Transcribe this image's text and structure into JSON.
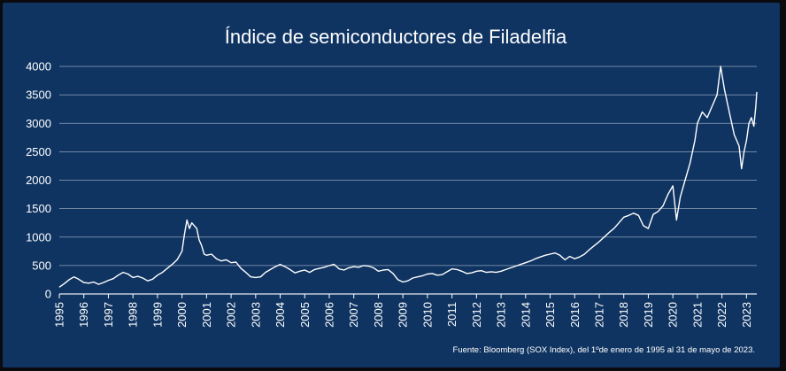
{
  "chart_data": {
    "type": "line",
    "title": "Índice de semiconductores de Filadelfia",
    "xlabel": "",
    "ylabel": "",
    "source_note": "Fuente: Bloomberg (SOX Index), del 1ºde enero de 1995 al 31 de mayo de 2023.",
    "x_tick_labels": [
      "1995",
      "1996",
      "1997",
      "1998",
      "1999",
      "2000",
      "2001",
      "2002",
      "2003",
      "2004",
      "2005",
      "2006",
      "2007",
      "2008",
      "2009",
      "2010",
      "2011",
      "2012",
      "2013",
      "2014",
      "2015",
      "2016",
      "2017",
      "2018",
      "2019",
      "2020",
      "2021",
      "2022",
      "2023"
    ],
    "y_tick_labels": [
      "0",
      "500",
      "1000",
      "1500",
      "2000",
      "2500",
      "3000",
      "3500",
      "4000"
    ],
    "xlim": [
      1995.0,
      2023.42
    ],
    "ylim": [
      0,
      4000
    ],
    "grid": "horizontal",
    "series": [
      {
        "color": "#ffffff",
        "points": [
          [
            1995.0,
            120
          ],
          [
            1995.2,
            180
          ],
          [
            1995.4,
            250
          ],
          [
            1995.6,
            300
          ],
          [
            1995.75,
            270
          ],
          [
            1996.0,
            200
          ],
          [
            1996.2,
            190
          ],
          [
            1996.4,
            210
          ],
          [
            1996.6,
            170
          ],
          [
            1996.8,
            200
          ],
          [
            1997.0,
            240
          ],
          [
            1997.2,
            270
          ],
          [
            1997.4,
            330
          ],
          [
            1997.6,
            380
          ],
          [
            1997.8,
            350
          ],
          [
            1998.0,
            290
          ],
          [
            1998.2,
            310
          ],
          [
            1998.4,
            280
          ],
          [
            1998.6,
            230
          ],
          [
            1998.8,
            260
          ],
          [
            1999.0,
            330
          ],
          [
            1999.2,
            380
          ],
          [
            1999.4,
            450
          ],
          [
            1999.6,
            520
          ],
          [
            1999.8,
            600
          ],
          [
            2000.0,
            750
          ],
          [
            2000.1,
            1050
          ],
          [
            2000.2,
            1300
          ],
          [
            2000.3,
            1150
          ],
          [
            2000.4,
            1250
          ],
          [
            2000.5,
            1200
          ],
          [
            2000.6,
            1150
          ],
          [
            2000.7,
            950
          ],
          [
            2000.8,
            850
          ],
          [
            2000.9,
            700
          ],
          [
            2001.0,
            680
          ],
          [
            2001.2,
            700
          ],
          [
            2001.4,
            620
          ],
          [
            2001.6,
            580
          ],
          [
            2001.8,
            600
          ],
          [
            2002.0,
            550
          ],
          [
            2002.2,
            560
          ],
          [
            2002.4,
            450
          ],
          [
            2002.6,
            380
          ],
          [
            2002.8,
            300
          ],
          [
            2003.0,
            290
          ],
          [
            2003.2,
            300
          ],
          [
            2003.4,
            380
          ],
          [
            2003.6,
            430
          ],
          [
            2003.8,
            480
          ],
          [
            2004.0,
            520
          ],
          [
            2004.2,
            480
          ],
          [
            2004.4,
            430
          ],
          [
            2004.6,
            370
          ],
          [
            2004.8,
            400
          ],
          [
            2005.0,
            420
          ],
          [
            2005.2,
            380
          ],
          [
            2005.4,
            430
          ],
          [
            2005.6,
            450
          ],
          [
            2005.8,
            470
          ],
          [
            2006.0,
            500
          ],
          [
            2006.2,
            520
          ],
          [
            2006.4,
            440
          ],
          [
            2006.6,
            420
          ],
          [
            2006.8,
            460
          ],
          [
            2007.0,
            480
          ],
          [
            2007.2,
            470
          ],
          [
            2007.4,
            500
          ],
          [
            2007.6,
            490
          ],
          [
            2007.8,
            460
          ],
          [
            2008.0,
            400
          ],
          [
            2008.2,
            420
          ],
          [
            2008.4,
            430
          ],
          [
            2008.6,
            360
          ],
          [
            2008.8,
            250
          ],
          [
            2009.0,
            210
          ],
          [
            2009.2,
            230
          ],
          [
            2009.4,
            280
          ],
          [
            2009.6,
            300
          ],
          [
            2009.8,
            320
          ],
          [
            2010.0,
            350
          ],
          [
            2010.2,
            360
          ],
          [
            2010.4,
            330
          ],
          [
            2010.6,
            340
          ],
          [
            2010.8,
            390
          ],
          [
            2011.0,
            440
          ],
          [
            2011.2,
            430
          ],
          [
            2011.4,
            400
          ],
          [
            2011.6,
            360
          ],
          [
            2011.8,
            370
          ],
          [
            2012.0,
            400
          ],
          [
            2012.2,
            410
          ],
          [
            2012.4,
            380
          ],
          [
            2012.6,
            390
          ],
          [
            2012.8,
            380
          ],
          [
            2013.0,
            400
          ],
          [
            2013.2,
            430
          ],
          [
            2013.4,
            460
          ],
          [
            2013.6,
            490
          ],
          [
            2013.8,
            520
          ],
          [
            2014.0,
            550
          ],
          [
            2014.2,
            580
          ],
          [
            2014.4,
            620
          ],
          [
            2014.6,
            650
          ],
          [
            2014.8,
            680
          ],
          [
            2015.0,
            700
          ],
          [
            2015.2,
            720
          ],
          [
            2015.4,
            680
          ],
          [
            2015.6,
            600
          ],
          [
            2015.8,
            660
          ],
          [
            2016.0,
            620
          ],
          [
            2016.2,
            650
          ],
          [
            2016.4,
            700
          ],
          [
            2016.6,
            780
          ],
          [
            2016.8,
            850
          ],
          [
            2017.0,
            920
          ],
          [
            2017.2,
            1000
          ],
          [
            2017.4,
            1080
          ],
          [
            2017.6,
            1150
          ],
          [
            2017.8,
            1250
          ],
          [
            2018.0,
            1350
          ],
          [
            2018.2,
            1380
          ],
          [
            2018.4,
            1420
          ],
          [
            2018.6,
            1380
          ],
          [
            2018.8,
            1200
          ],
          [
            2019.0,
            1150
          ],
          [
            2019.2,
            1400
          ],
          [
            2019.4,
            1450
          ],
          [
            2019.6,
            1550
          ],
          [
            2019.8,
            1750
          ],
          [
            2020.0,
            1900
          ],
          [
            2020.15,
            1300
          ],
          [
            2020.3,
            1700
          ],
          [
            2020.5,
            2000
          ],
          [
            2020.7,
            2300
          ],
          [
            2020.9,
            2700
          ],
          [
            2021.0,
            3000
          ],
          [
            2021.2,
            3200
          ],
          [
            2021.4,
            3100
          ],
          [
            2021.6,
            3300
          ],
          [
            2021.8,
            3500
          ],
          [
            2021.95,
            4000
          ],
          [
            2022.1,
            3600
          ],
          [
            2022.3,
            3200
          ],
          [
            2022.5,
            2800
          ],
          [
            2022.7,
            2600
          ],
          [
            2022.8,
            2200
          ],
          [
            2022.9,
            2500
          ],
          [
            2023.0,
            2700
          ],
          [
            2023.1,
            3000
          ],
          [
            2023.2,
            3100
          ],
          [
            2023.3,
            2950
          ],
          [
            2023.38,
            3300
          ],
          [
            2023.42,
            3550
          ]
        ]
      }
    ]
  }
}
